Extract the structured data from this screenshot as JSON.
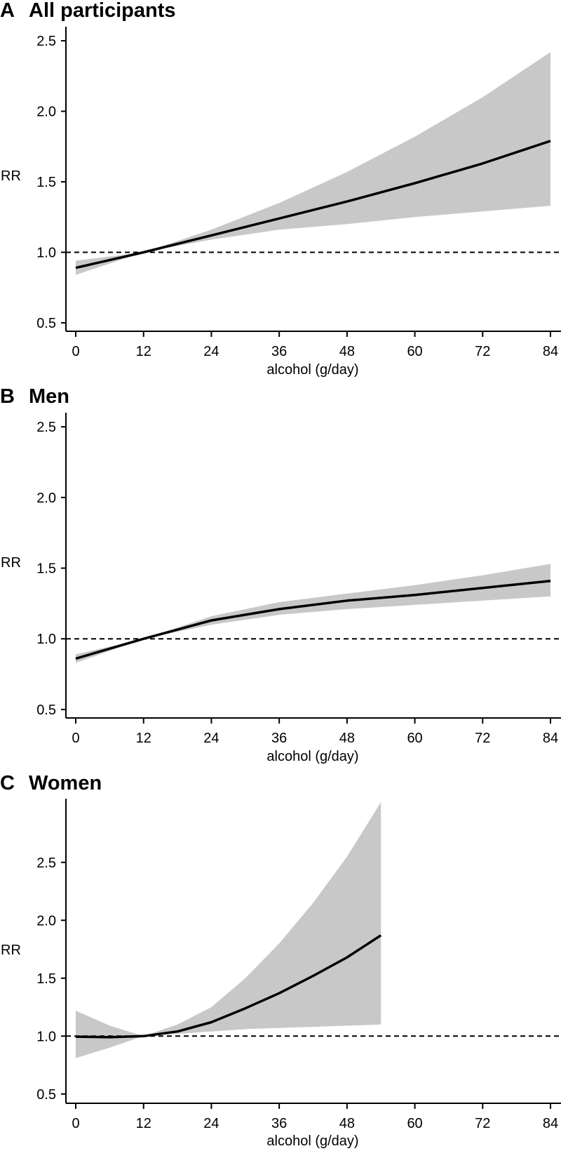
{
  "chart_data": [
    {
      "type": "line",
      "panel": "A",
      "title": "All participants",
      "xlabel": "alcohol (g/day)",
      "ylabel": "RR",
      "xlim": [
        0,
        84
      ],
      "ylim": [
        0.44,
        2.6
      ],
      "xticks": [
        "0",
        "12",
        "24",
        "36",
        "48",
        "60",
        "72",
        "84"
      ],
      "yticks": [
        "0.5",
        "1.0",
        "1.5",
        "2.0",
        "2.5"
      ],
      "reference_line": 1.0,
      "series": [
        {
          "name": "RR",
          "x": [
            0,
            12,
            24,
            36,
            48,
            60,
            72,
            84
          ],
          "values": [
            0.89,
            1.0,
            1.12,
            1.24,
            1.36,
            1.49,
            1.63,
            1.79
          ]
        },
        {
          "name": "95% CI upper",
          "x": [
            0,
            12,
            24,
            36,
            48,
            60,
            72,
            84
          ],
          "values": [
            0.94,
            1.0,
            1.16,
            1.35,
            1.57,
            1.82,
            2.1,
            2.42
          ]
        },
        {
          "name": "95% CI lower",
          "x": [
            0,
            12,
            24,
            36,
            48,
            60,
            72,
            84
          ],
          "values": [
            0.84,
            1.0,
            1.09,
            1.16,
            1.2,
            1.25,
            1.29,
            1.33
          ]
        }
      ]
    },
    {
      "type": "line",
      "panel": "B",
      "title": "Men",
      "xlabel": "alcohol (g/day)",
      "ylabel": "RR",
      "xlim": [
        0,
        84
      ],
      "ylim": [
        0.44,
        2.6
      ],
      "xticks": [
        "0",
        "12",
        "24",
        "36",
        "48",
        "60",
        "72",
        "84"
      ],
      "yticks": [
        "0.5",
        "1.0",
        "1.5",
        "2.0",
        "2.5"
      ],
      "reference_line": 1.0,
      "series": [
        {
          "name": "RR",
          "x": [
            0,
            12,
            24,
            36,
            48,
            60,
            72,
            84
          ],
          "values": [
            0.86,
            1.0,
            1.13,
            1.21,
            1.27,
            1.31,
            1.36,
            1.41
          ]
        },
        {
          "name": "95% CI upper",
          "x": [
            0,
            12,
            24,
            36,
            48,
            60,
            72,
            84
          ],
          "values": [
            0.89,
            1.0,
            1.16,
            1.26,
            1.32,
            1.38,
            1.45,
            1.53
          ]
        },
        {
          "name": "95% CI lower",
          "x": [
            0,
            12,
            24,
            36,
            48,
            60,
            72,
            84
          ],
          "values": [
            0.83,
            1.0,
            1.1,
            1.17,
            1.21,
            1.24,
            1.27,
            1.3
          ]
        }
      ]
    },
    {
      "type": "line",
      "panel": "C",
      "title": "Women",
      "xlabel": "alcohol (g/day)",
      "ylabel": "RR",
      "xlim": [
        0,
        84
      ],
      "ylim": [
        0.42,
        3.05
      ],
      "xticks": [
        "0",
        "12",
        "24",
        "36",
        "48",
        "60",
        "72",
        "84"
      ],
      "yticks": [
        "0.5",
        "1.0",
        "1.5",
        "2.0",
        "2.5"
      ],
      "reference_line": 1.0,
      "series": [
        {
          "name": "RR",
          "x": [
            0,
            6,
            12,
            18,
            24,
            30,
            36,
            42,
            48,
            54
          ],
          "values": [
            0.995,
            0.99,
            1.0,
            1.04,
            1.12,
            1.24,
            1.37,
            1.52,
            1.68,
            1.87
          ]
        },
        {
          "name": "95% CI upper",
          "x": [
            0,
            6,
            12,
            18,
            24,
            30,
            36,
            42,
            48,
            54
          ],
          "values": [
            1.22,
            1.09,
            1.0,
            1.1,
            1.25,
            1.5,
            1.8,
            2.15,
            2.55,
            3.02
          ]
        },
        {
          "name": "95% CI lower",
          "x": [
            0,
            6,
            12,
            18,
            24,
            30,
            36,
            42,
            48,
            54
          ],
          "values": [
            0.81,
            0.9,
            1.0,
            1.02,
            1.04,
            1.06,
            1.07,
            1.08,
            1.09,
            1.1
          ]
        }
      ]
    }
  ]
}
